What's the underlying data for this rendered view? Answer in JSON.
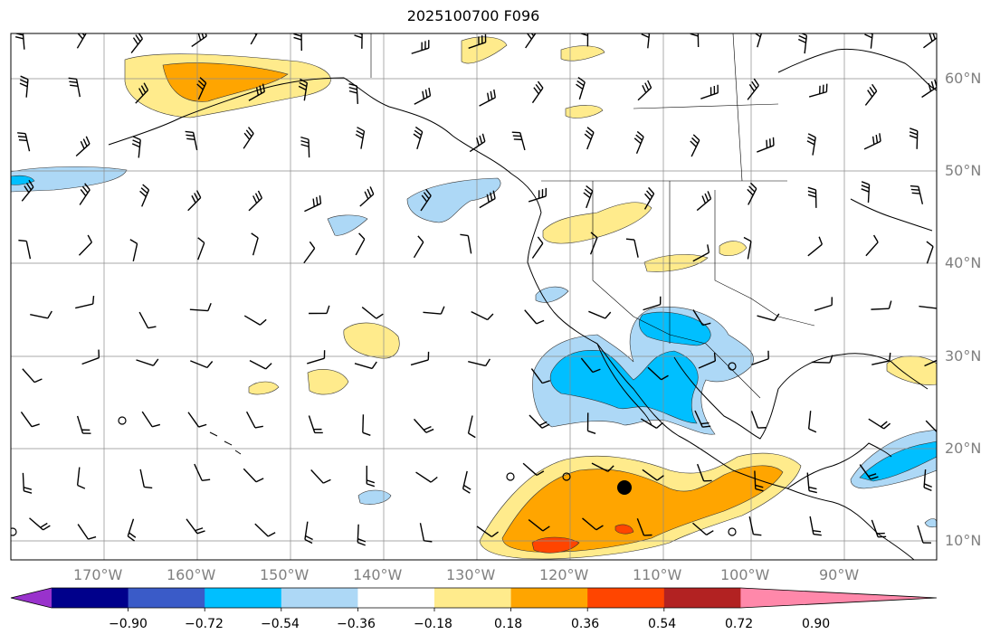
{
  "title": "2025100700 F096",
  "lon_labels": [
    "170°W",
    "160°W",
    "150°W",
    "140°W",
    "130°W",
    "120°W",
    "110°W",
    "100°W",
    "90°W"
  ],
  "lat_labels": [
    "60°N",
    "50°N",
    "40°N",
    "30°N",
    "20°N",
    "10°N"
  ],
  "colorbar": {
    "colors": [
      "#9932cc",
      "#00008b",
      "#3a5bc8",
      "#00bfff",
      "#add8f6",
      "#ffffff",
      "#ffeb8c",
      "#ffa500",
      "#ff4500",
      "#b22222",
      "#ff88aa"
    ],
    "tick_labels": [
      "−0.90",
      "−0.72",
      "−0.54",
      "−0.36",
      "−0.18",
      "0.18",
      "0.36",
      "0.54",
      "0.72",
      "0.90"
    ]
  }
}
